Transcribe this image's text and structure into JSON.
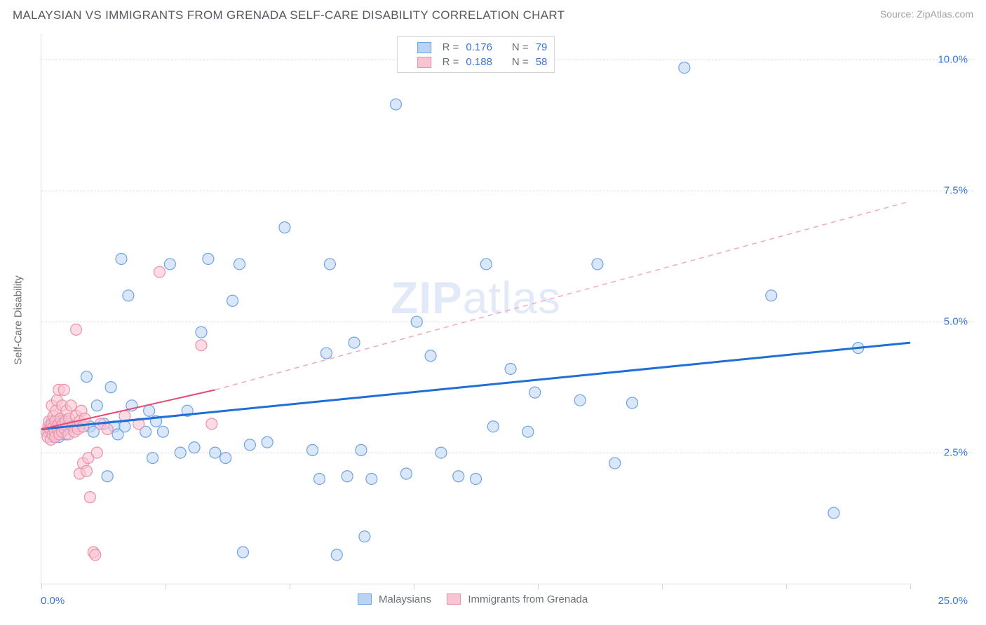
{
  "header": {
    "title": "MALAYSIAN VS IMMIGRANTS FROM GRENADA SELF-CARE DISABILITY CORRELATION CHART",
    "source": "Source: ZipAtlas.com"
  },
  "chart": {
    "type": "scatter",
    "ylabel": "Self-Care Disability",
    "xlim": [
      0,
      25
    ],
    "ylim": [
      0,
      10.5
    ],
    "x_origin_label": "0.0%",
    "x_max_label": "25.0%",
    "y_ticks": [
      {
        "v": 2.5,
        "label": "2.5%"
      },
      {
        "v": 5.0,
        "label": "5.0%"
      },
      {
        "v": 7.5,
        "label": "7.5%"
      },
      {
        "v": 10.0,
        "label": "10.0%"
      }
    ],
    "x_tick_positions": [
      0,
      3.57,
      7.14,
      10.71,
      14.28,
      17.85,
      21.42,
      25
    ],
    "background_color": "#ffffff",
    "grid_color": "#d9dde2",
    "marker_radius": 8,
    "marker_stroke_width": 1.2,
    "series": [
      {
        "name": "Malaysians",
        "fill": "#b9d3f3",
        "stroke": "#6ea2e6",
        "fill_opacity": 0.55,
        "R": "0.176",
        "N": "79",
        "trend": {
          "x1": 0,
          "y1": 2.95,
          "x2": 25,
          "y2": 4.6,
          "solid": true,
          "stroke": "#1f6fd6",
          "width": 3
        },
        "points": [
          [
            0.2,
            2.9
          ],
          [
            0.25,
            3.0
          ],
          [
            0.3,
            3.1
          ],
          [
            0.35,
            2.8
          ],
          [
            0.4,
            3.05
          ],
          [
            0.4,
            2.9
          ],
          [
            0.5,
            3.0
          ],
          [
            0.5,
            2.8
          ],
          [
            0.55,
            3.15
          ],
          [
            0.6,
            2.95
          ],
          [
            0.6,
            3.1
          ],
          [
            0.7,
            2.85
          ],
          [
            0.8,
            3.05
          ],
          [
            0.9,
            3.0
          ],
          [
            1.0,
            3.0
          ],
          [
            1.1,
            3.0
          ],
          [
            1.2,
            3.0
          ],
          [
            1.3,
            3.95
          ],
          [
            1.4,
            3.0
          ],
          [
            1.5,
            2.9
          ],
          [
            1.6,
            3.4
          ],
          [
            1.8,
            3.05
          ],
          [
            1.9,
            2.05
          ],
          [
            2.0,
            3.75
          ],
          [
            2.1,
            3.0
          ],
          [
            2.2,
            2.85
          ],
          [
            2.3,
            6.2
          ],
          [
            2.4,
            3.0
          ],
          [
            2.5,
            5.5
          ],
          [
            2.6,
            3.4
          ],
          [
            3.0,
            2.9
          ],
          [
            3.1,
            3.3
          ],
          [
            3.2,
            2.4
          ],
          [
            3.3,
            3.1
          ],
          [
            3.5,
            2.9
          ],
          [
            3.7,
            6.1
          ],
          [
            4.0,
            2.5
          ],
          [
            4.2,
            3.3
          ],
          [
            4.4,
            2.6
          ],
          [
            4.6,
            4.8
          ],
          [
            4.8,
            6.2
          ],
          [
            5.0,
            2.5
          ],
          [
            5.3,
            2.4
          ],
          [
            5.5,
            5.4
          ],
          [
            5.7,
            6.1
          ],
          [
            5.8,
            0.6
          ],
          [
            6.0,
            2.65
          ],
          [
            6.5,
            2.7
          ],
          [
            7.0,
            6.8
          ],
          [
            7.8,
            2.55
          ],
          [
            8.0,
            2.0
          ],
          [
            8.2,
            4.4
          ],
          [
            8.3,
            6.1
          ],
          [
            8.5,
            0.55
          ],
          [
            8.8,
            2.05
          ],
          [
            9.0,
            4.6
          ],
          [
            9.2,
            2.55
          ],
          [
            9.3,
            0.9
          ],
          [
            9.5,
            2.0
          ],
          [
            10.2,
            9.15
          ],
          [
            10.5,
            2.1
          ],
          [
            10.8,
            5.0
          ],
          [
            11.2,
            4.35
          ],
          [
            11.5,
            2.5
          ],
          [
            12.0,
            2.05
          ],
          [
            12.5,
            2.0
          ],
          [
            12.8,
            6.1
          ],
          [
            13.0,
            3.0
          ],
          [
            13.5,
            4.1
          ],
          [
            14.0,
            2.9
          ],
          [
            14.2,
            3.65
          ],
          [
            15.5,
            3.5
          ],
          [
            16.0,
            6.1
          ],
          [
            16.5,
            2.3
          ],
          [
            17.0,
            3.45
          ],
          [
            18.5,
            9.85
          ],
          [
            21.0,
            5.5
          ],
          [
            22.8,
            1.35
          ],
          [
            23.5,
            4.5
          ]
        ]
      },
      {
        "name": "Immigrants from Grenada",
        "fill": "#f8c4d2",
        "stroke": "#ec8fa8",
        "fill_opacity": 0.6,
        "R": "0.188",
        "N": "58",
        "trend_solid": {
          "x1": 0,
          "y1": 2.95,
          "x2": 5.0,
          "y2": 3.7,
          "stroke": "#e54b72",
          "width": 2
        },
        "trend_dashed": {
          "x1": 5.0,
          "y1": 3.7,
          "x2": 25,
          "y2": 7.3,
          "stroke": "#f3a8bb",
          "width": 1.5
        },
        "points": [
          [
            0.15,
            2.9
          ],
          [
            0.18,
            2.8
          ],
          [
            0.2,
            3.0
          ],
          [
            0.22,
            3.1
          ],
          [
            0.25,
            2.95
          ],
          [
            0.27,
            2.75
          ],
          [
            0.3,
            3.05
          ],
          [
            0.3,
            3.4
          ],
          [
            0.32,
            2.85
          ],
          [
            0.35,
            3.0
          ],
          [
            0.35,
            3.2
          ],
          [
            0.38,
            2.9
          ],
          [
            0.4,
            3.1
          ],
          [
            0.4,
            2.8
          ],
          [
            0.42,
            3.3
          ],
          [
            0.45,
            3.0
          ],
          [
            0.45,
            3.5
          ],
          [
            0.48,
            2.95
          ],
          [
            0.5,
            3.05
          ],
          [
            0.5,
            3.7
          ],
          [
            0.52,
            2.85
          ],
          [
            0.55,
            3.15
          ],
          [
            0.58,
            3.0
          ],
          [
            0.6,
            3.4
          ],
          [
            0.6,
            2.9
          ],
          [
            0.62,
            3.05
          ],
          [
            0.65,
            3.7
          ],
          [
            0.68,
            2.95
          ],
          [
            0.7,
            3.1
          ],
          [
            0.72,
            3.3
          ],
          [
            0.75,
            3.0
          ],
          [
            0.78,
            2.85
          ],
          [
            0.8,
            3.15
          ],
          [
            0.85,
            3.4
          ],
          [
            0.9,
            3.0
          ],
          [
            0.95,
            2.9
          ],
          [
            1.0,
            3.2
          ],
          [
            1.0,
            4.85
          ],
          [
            1.05,
            2.95
          ],
          [
            1.1,
            3.1
          ],
          [
            1.1,
            2.1
          ],
          [
            1.15,
            3.3
          ],
          [
            1.2,
            3.0
          ],
          [
            1.2,
            2.3
          ],
          [
            1.25,
            3.15
          ],
          [
            1.3,
            2.15
          ],
          [
            1.35,
            2.4
          ],
          [
            1.4,
            1.65
          ],
          [
            1.5,
            0.6
          ],
          [
            1.55,
            0.55
          ],
          [
            1.6,
            2.5
          ],
          [
            1.7,
            3.05
          ],
          [
            1.9,
            2.95
          ],
          [
            2.4,
            3.2
          ],
          [
            2.8,
            3.05
          ],
          [
            3.4,
            5.95
          ],
          [
            4.6,
            4.55
          ],
          [
            4.9,
            3.05
          ]
        ]
      }
    ],
    "legend": {
      "series1_label": "Malaysians",
      "series2_label": "Immigrants from Grenada"
    },
    "top_legend": {
      "R_label": "R =",
      "N_label": "N ="
    },
    "watermark": {
      "part1": "ZIP",
      "part2": "atlas"
    }
  }
}
